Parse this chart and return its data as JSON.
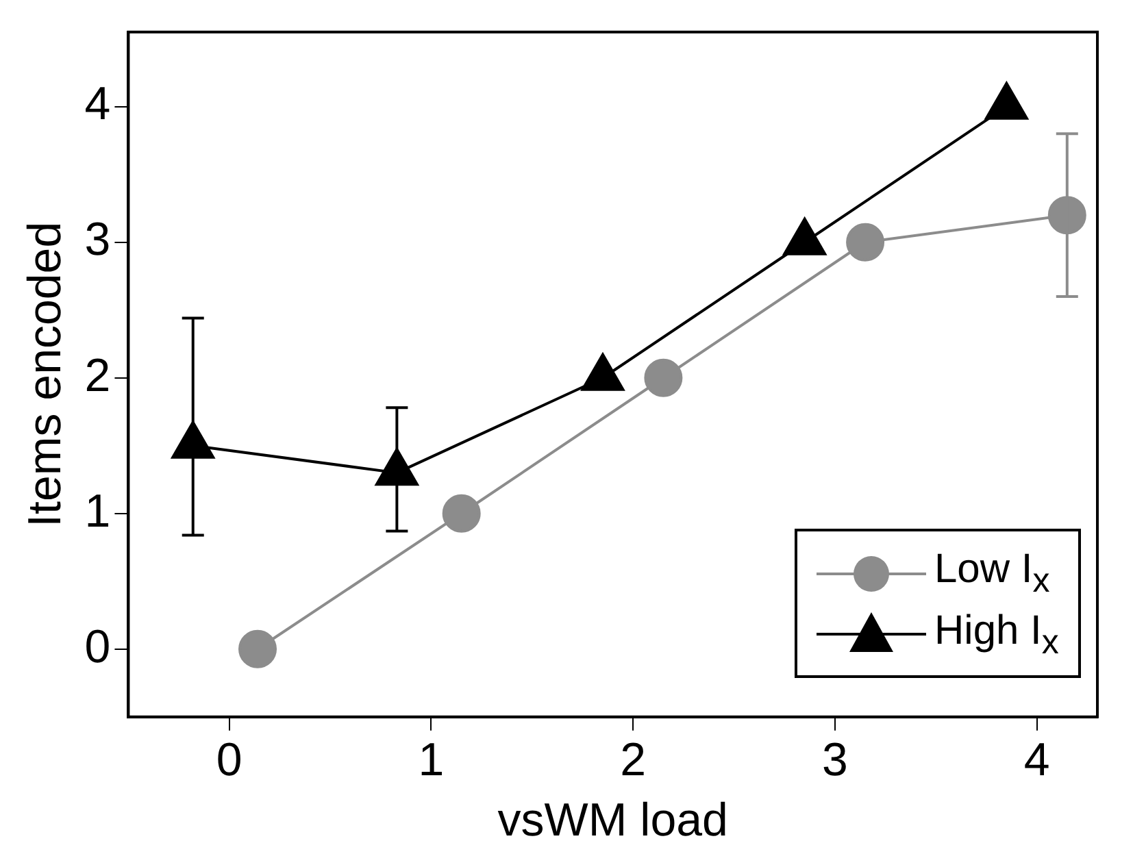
{
  "chart_data": {
    "type": "line",
    "xlabel": "vsWM load",
    "ylabel": "Items encoded",
    "xlim": [
      -0.5,
      4.3
    ],
    "xticks": [
      0,
      1,
      2,
      3,
      4
    ],
    "ylim": [
      -0.5,
      4.55
    ],
    "yticks": [
      0,
      1,
      2,
      3,
      4
    ],
    "grid": false,
    "legend": "bottom right",
    "line_style": "solid",
    "series": [
      {
        "name": "Low I$_{x}$",
        "color": "#8c8c8c",
        "marker": "circle",
        "x": [
          0.14,
          1.15,
          2.15,
          3.15,
          4.15
        ],
        "values": [
          0,
          1,
          2,
          3,
          3.2
        ],
        "errors": [
          null,
          null,
          null,
          null,
          [
            2.6,
            3.8
          ]
        ]
      },
      {
        "name": "High I$_{x}$",
        "color": "#000000",
        "marker": "triangle",
        "x": [
          -0.18,
          0.83,
          1.85,
          2.85,
          3.85
        ],
        "values": [
          1.5,
          1.3,
          2,
          3,
          4
        ],
        "errors": [
          [
            0.84,
            2.44
          ],
          [
            0.87,
            1.78
          ],
          null,
          null,
          null
        ]
      }
    ]
  }
}
